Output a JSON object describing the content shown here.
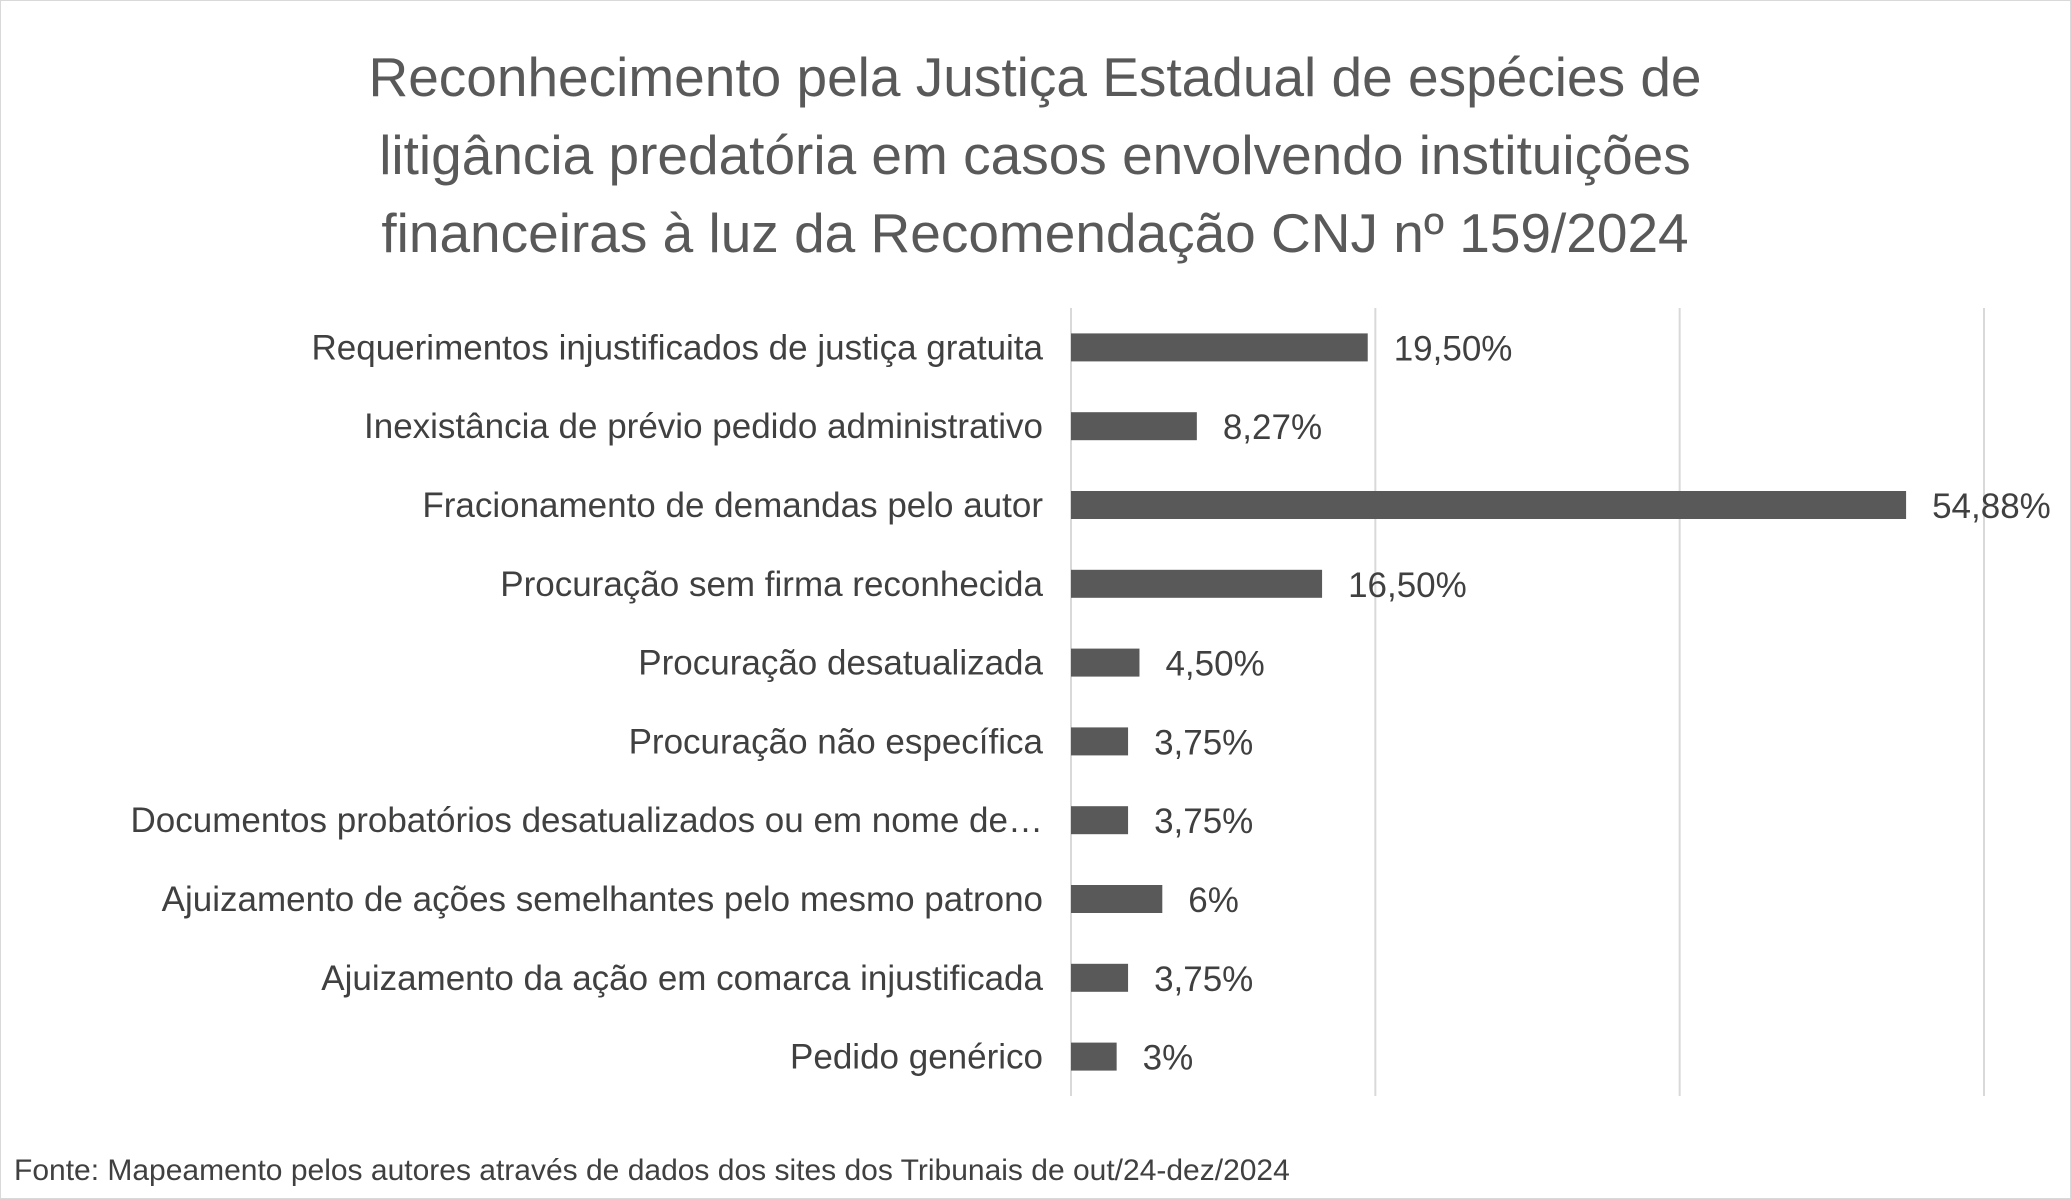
{
  "chart_data": {
    "type": "bar",
    "orientation": "horizontal",
    "title_lines": [
      "Reconhecimento pela Justiça Estadual de espécies de",
      "litigância predatória em casos envolvendo instituições",
      "financeiras à luz da Recomendação CNJ nº 159/2024"
    ],
    "categories": [
      "Requerimentos injustificados de justiça gratuita",
      "Inexistância de prévio pedido administrativo",
      "Fracionamento de demandas pelo autor",
      "Procuração sem firma reconhecida",
      "Procuração desatualizada",
      "Procuração não específica",
      "Documentos probatórios desatualizados ou em nome de…",
      "Ajuizamento de ações semelhantes pelo mesmo patrono",
      "Ajuizamento da ação em comarca injustificada",
      "Pedido genérico"
    ],
    "values": [
      19.5,
      8.27,
      54.88,
      16.5,
      4.5,
      3.75,
      3.75,
      6,
      3.75,
      3
    ],
    "data_labels": [
      "19,50%",
      "8,27%",
      "54,88%",
      "16,50%",
      "4,50%",
      "3,75%",
      "3,75%",
      "6%",
      "3,75%",
      "3%"
    ],
    "xlim": [
      0,
      60
    ],
    "gridlines_at": [
      0,
      20,
      40,
      60
    ],
    "grid": true,
    "bar_color": "#595959",
    "gridline_color": "#d9d9d9"
  },
  "source_note": "Fonte: Mapeamento pelos autores através de dados dos sites dos Tribunais de out/24-dez/2024"
}
